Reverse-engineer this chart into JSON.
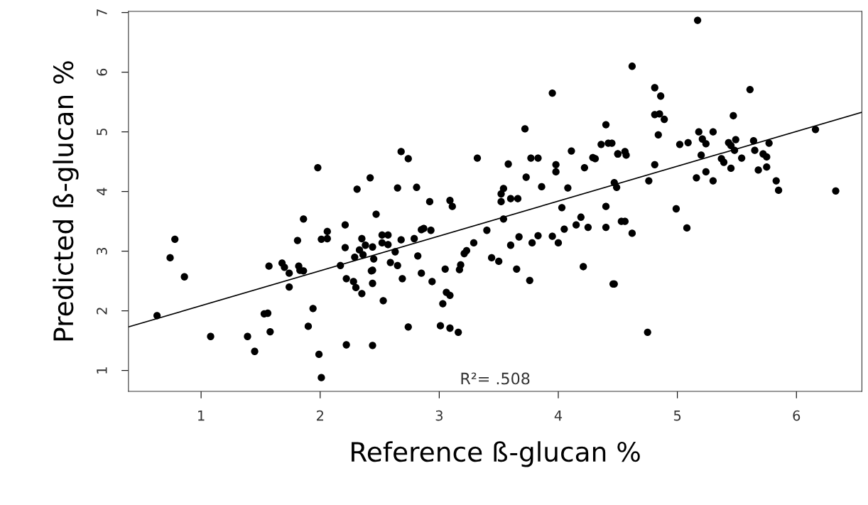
{
  "chart_data": {
    "type": "scatter",
    "xlabel": "Reference ß-glucan %",
    "ylabel": "Predicted ß-glucan %",
    "xlim": [
      0.39,
      6.55
    ],
    "ylim": [
      0.65,
      7.02
    ],
    "xticks": [
      1,
      2,
      3,
      4,
      5,
      6
    ],
    "yticks": [
      1,
      2,
      3,
      4,
      5,
      6,
      7
    ],
    "grid": false,
    "annotations": [
      "R²= .508"
    ],
    "series": [
      {
        "marker": "circle",
        "color": "#000000",
        "x": [
          4.45,
          4.62,
          4.81,
          4.86,
          4.81,
          4.85,
          4.89,
          4.84,
          4.5,
          4.56,
          4.57,
          4.47,
          4.49,
          4.76,
          4.81,
          4.53,
          4.56,
          4.62,
          4.47,
          4.75,
          4.99,
          5.08,
          5.17,
          5.02,
          5.09,
          5.18,
          5.21,
          5.24,
          5.3,
          5.2,
          5.16,
          5.24,
          5.3,
          5.37,
          5.39,
          5.43,
          5.45,
          5.49,
          5.48,
          5.47,
          5.45,
          5.54,
          5.61,
          5.64,
          5.65,
          5.68,
          5.72,
          5.75,
          5.75,
          5.77,
          5.83,
          5.85,
          6.16,
          6.33,
          3.95,
          3.72,
          4.4,
          4.36,
          4.42,
          4.11,
          4.5,
          4.29,
          4.31,
          4.22,
          3.98,
          3.98,
          3.77,
          3.83,
          3.58,
          3.73,
          3.32,
          2.68,
          2.74,
          3.86,
          4.08,
          3.54,
          3.52,
          3.52,
          3.6,
          3.66,
          2.65,
          2.81,
          2.92,
          3.09,
          3.11,
          2.47,
          2.42,
          3.54,
          4.03,
          4.19,
          4.4,
          4.15,
          4.25,
          4.4,
          4.05,
          3.4,
          3.67,
          3.83,
          3.95,
          4.0,
          3.78,
          3.6,
          3.29,
          3.23,
          3.21,
          2.85,
          2.87,
          2.93,
          2.79,
          2.68,
          2.52,
          2.57,
          2.52,
          2.57,
          2.44,
          2.63,
          2.45,
          2.82,
          2.59,
          2.65,
          2.44,
          2.44,
          2.69,
          2.85,
          2.94,
          3.05,
          3.18,
          3.17,
          3.44,
          3.5,
          3.65,
          3.76,
          4.21,
          4.46,
          2.53,
          3.06,
          3.09,
          3.03,
          2.74,
          3.01,
          3.09,
          3.16,
          2.44,
          0.63,
          0.74,
          0.78,
          0.86,
          1.08,
          1.39,
          1.45,
          1.53,
          1.56,
          1.58,
          1.57,
          1.68,
          1.7,
          1.74,
          1.74,
          1.82,
          1.83,
          1.86,
          1.81,
          1.86,
          1.94,
          1.9,
          1.98,
          1.99,
          2.01,
          2.01,
          2.06,
          2.06,
          2.21,
          2.21,
          2.17,
          2.22,
          2.28,
          2.3,
          2.35,
          2.22,
          2.31,
          2.35,
          2.38,
          2.33,
          2.29,
          2.36,
          2.43
        ],
        "values": [
          4.81,
          6.1,
          5.74,
          5.6,
          5.29,
          5.3,
          5.21,
          4.95,
          4.63,
          4.67,
          4.61,
          4.15,
          4.07,
          4.18,
          4.45,
          3.5,
          3.5,
          3.3,
          2.45,
          1.64,
          3.71,
          3.39,
          6.87,
          4.79,
          4.82,
          5.0,
          4.88,
          4.8,
          5.0,
          4.61,
          4.23,
          4.33,
          4.18,
          4.55,
          4.49,
          4.82,
          4.77,
          4.87,
          4.69,
          5.27,
          4.39,
          4.56,
          5.71,
          4.85,
          4.69,
          4.36,
          4.63,
          4.58,
          4.41,
          4.81,
          4.18,
          4.02,
          5.04,
          4.01,
          5.65,
          5.05,
          5.12,
          4.79,
          4.81,
          4.68,
          4.63,
          4.57,
          4.55,
          4.4,
          4.45,
          4.33,
          4.56,
          4.56,
          4.46,
          4.24,
          4.56,
          4.67,
          4.55,
          4.08,
          4.06,
          4.05,
          3.96,
          3.83,
          3.88,
          3.88,
          4.06,
          4.07,
          3.83,
          3.85,
          3.75,
          3.62,
          4.23,
          3.54,
          3.73,
          3.57,
          3.75,
          3.44,
          3.4,
          3.4,
          3.37,
          3.35,
          3.24,
          3.26,
          3.25,
          3.14,
          3.14,
          3.1,
          3.14,
          3.01,
          2.96,
          3.36,
          3.38,
          3.35,
          3.21,
          3.19,
          3.27,
          3.27,
          3.14,
          3.11,
          3.07,
          2.99,
          2.87,
          2.92,
          2.81,
          2.76,
          2.68,
          2.46,
          2.54,
          2.63,
          2.49,
          2.7,
          2.77,
          2.69,
          2.89,
          2.83,
          2.7,
          2.51,
          2.74,
          2.45,
          2.17,
          2.31,
          2.26,
          2.12,
          1.73,
          1.75,
          1.71,
          1.64,
          1.42,
          1.92,
          2.89,
          3.2,
          2.57,
          1.57,
          1.57,
          1.32,
          1.95,
          1.96,
          1.65,
          2.75,
          2.8,
          2.73,
          2.63,
          2.4,
          2.75,
          2.68,
          2.67,
          3.18,
          3.54,
          2.04,
          1.74,
          4.4,
          1.27,
          0.88,
          3.2,
          3.33,
          3.21,
          3.44,
          3.06,
          2.76,
          2.54,
          2.49,
          2.39,
          2.29,
          1.43,
          4.04,
          3.21,
          3.1,
          3.02,
          2.9,
          2.94,
          2.67
        ]
      },
      {
        "type": "line",
        "color": "#000000",
        "x": [
          0.39,
          6.55
        ],
        "values": [
          1.73,
          5.33
        ]
      }
    ]
  }
}
